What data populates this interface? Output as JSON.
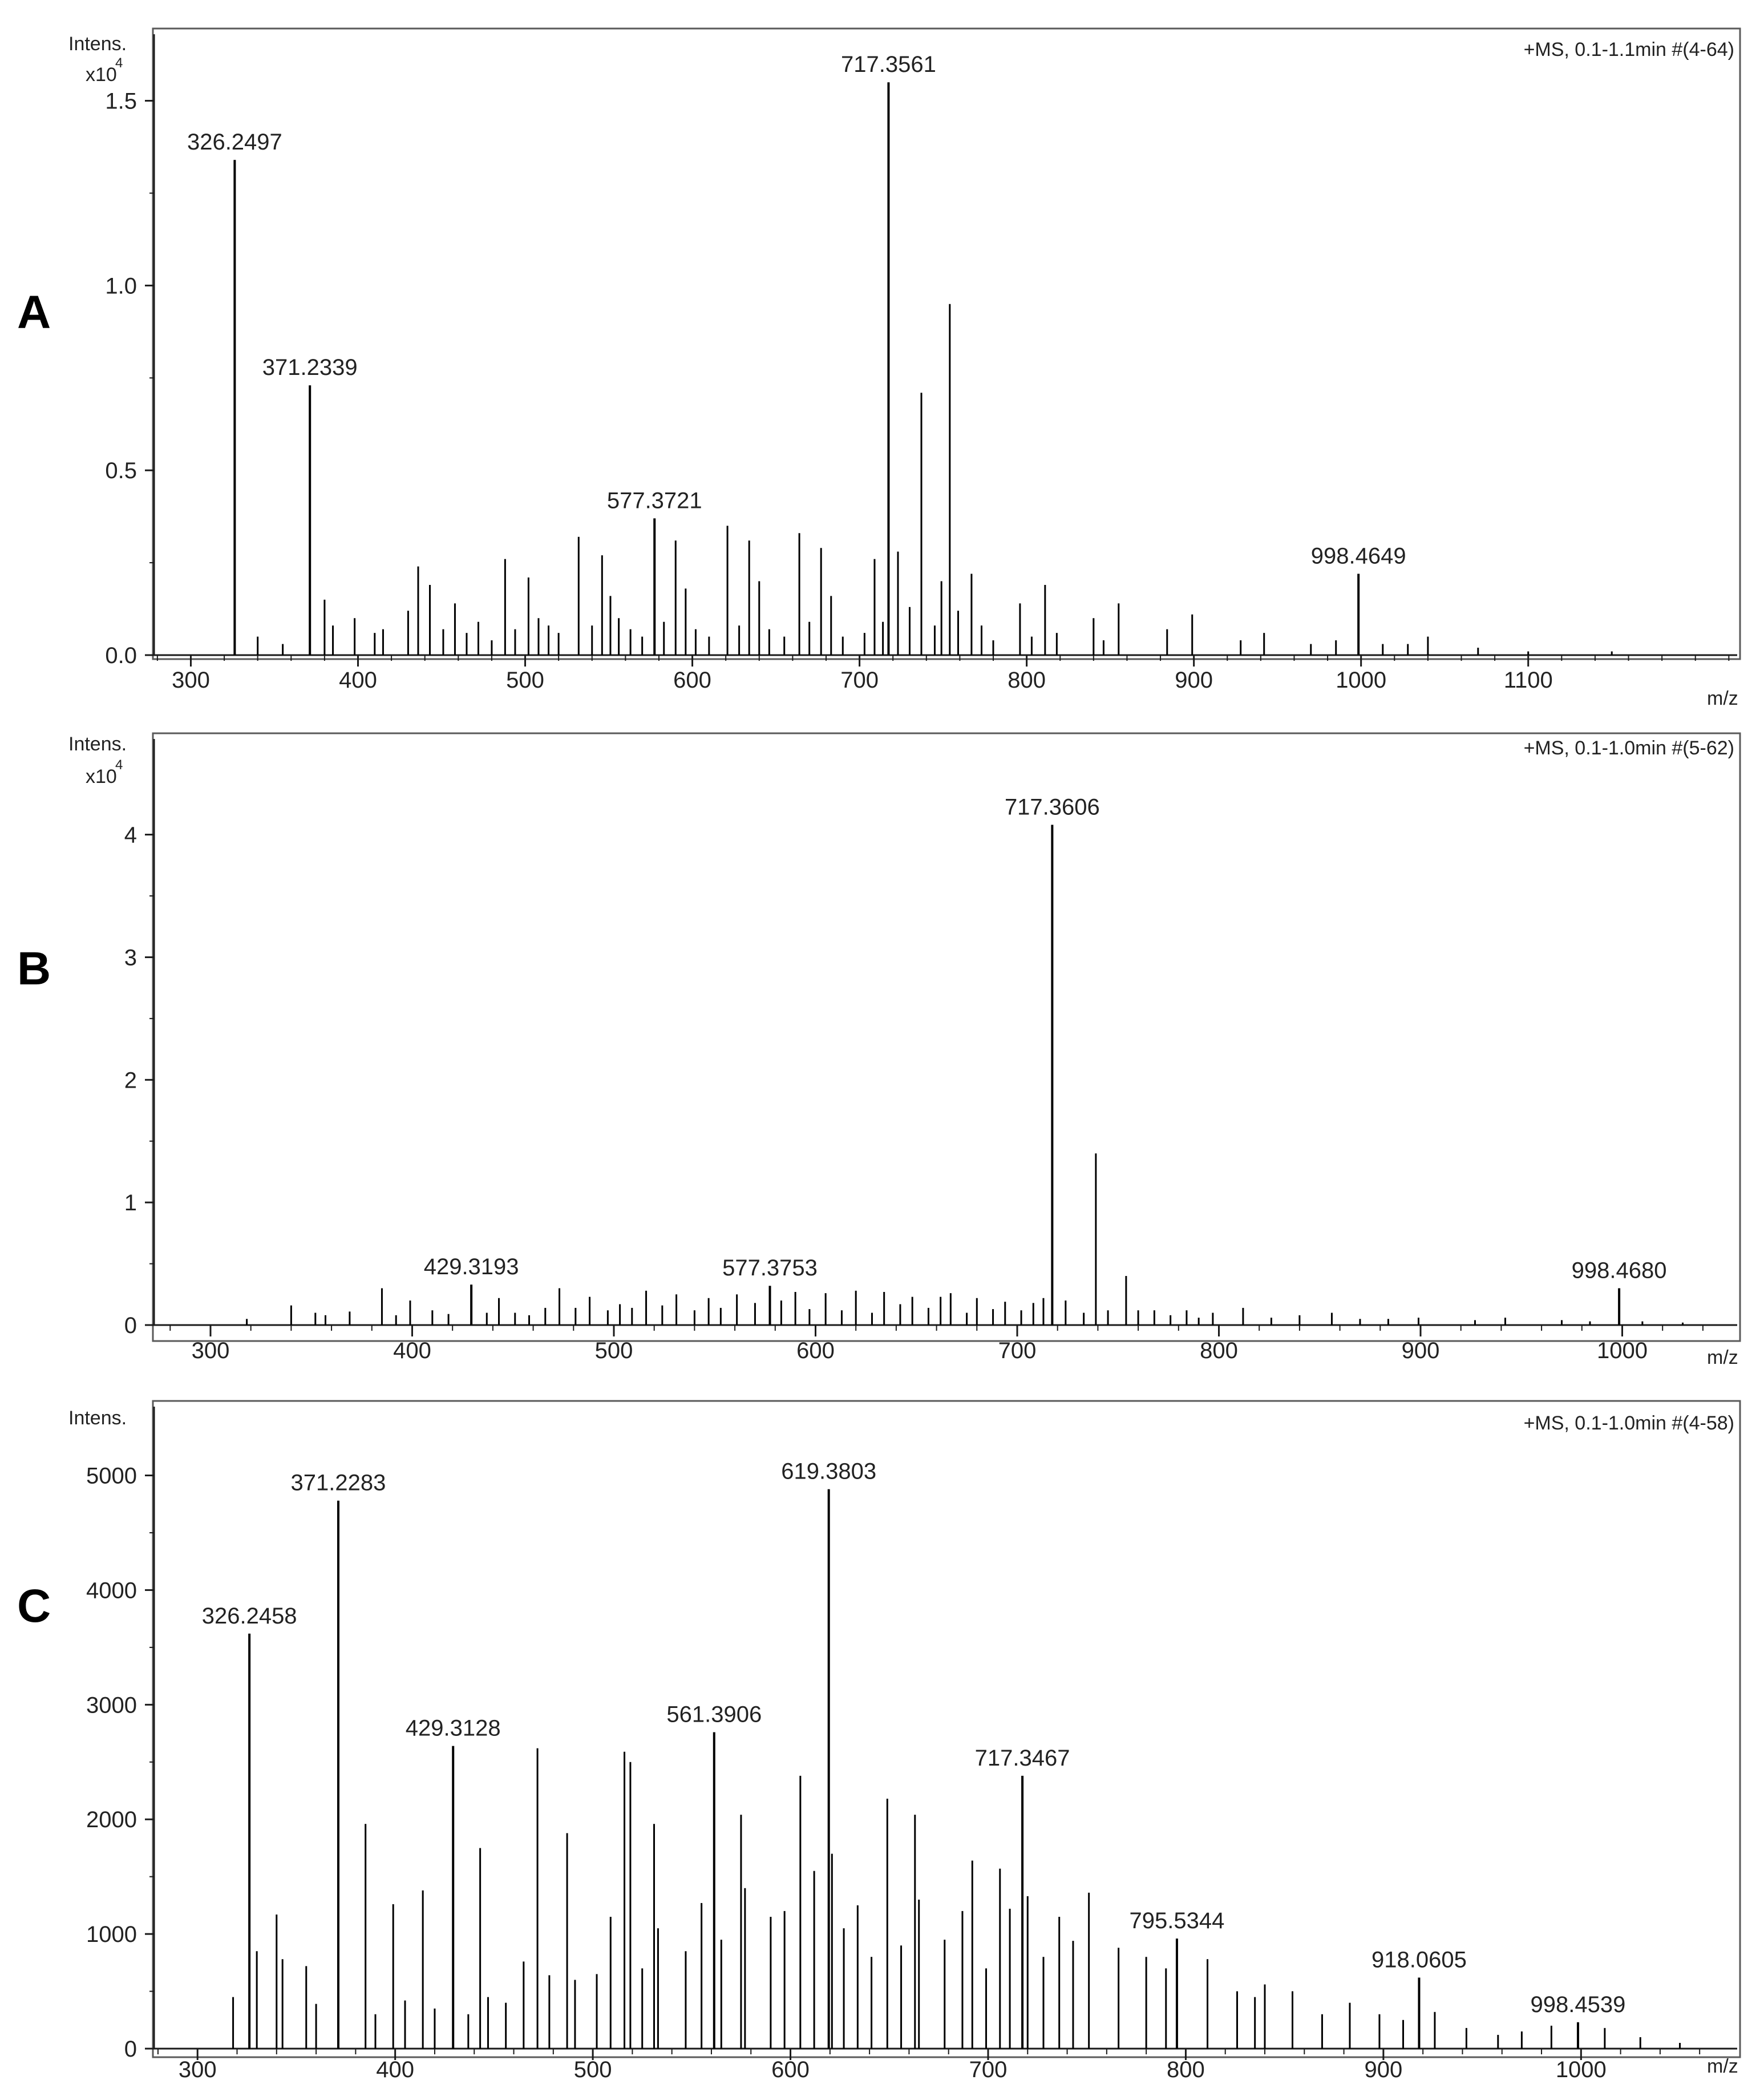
{
  "chart_data": [
    {
      "type": "bar",
      "panel_label": "A",
      "title": "+MS, 0.1-1.1min #(4-64)",
      "ylabel": "Intens.",
      "y_exponent_base": "x10",
      "y_exponent_power": "4",
      "xlabel": "m/z",
      "xlim": [
        278,
        1225
      ],
      "ylim": [
        0,
        1.68
      ],
      "x_ticks": [
        300,
        400,
        500,
        600,
        700,
        800,
        900,
        1000,
        1100
      ],
      "x_tick_labels": [
        "300",
        "400",
        "500",
        "600",
        "700",
        "800",
        "900",
        "1000",
        "1100"
      ],
      "y_ticks": [
        0,
        0.5,
        1.0,
        1.5
      ],
      "y_tick_labels": [
        "0.0",
        "0.5",
        "1.0",
        "1.5"
      ],
      "labeled_peaks": [
        {
          "mz": 326.2497,
          "intensity": 1.34,
          "label": "326.2497"
        },
        {
          "mz": 371.2339,
          "intensity": 0.73,
          "label": "371.2339"
        },
        {
          "mz": 577.3721,
          "intensity": 0.37,
          "label": "577.3721"
        },
        {
          "mz": 717.3561,
          "intensity": 1.55,
          "label": "717.3561"
        },
        {
          "mz": 998.4649,
          "intensity": 0.22,
          "label": "998.4649"
        }
      ],
      "other_peaks": [
        [
          340,
          0.05
        ],
        [
          355,
          0.03
        ],
        [
          380,
          0.15
        ],
        [
          385,
          0.08
        ],
        [
          398,
          0.1
        ],
        [
          410,
          0.06
        ],
        [
          415,
          0.07
        ],
        [
          430,
          0.12
        ],
        [
          436,
          0.24
        ],
        [
          443,
          0.19
        ],
        [
          451,
          0.07
        ],
        [
          458,
          0.14
        ],
        [
          465,
          0.06
        ],
        [
          472,
          0.09
        ],
        [
          480,
          0.04
        ],
        [
          488,
          0.26
        ],
        [
          494,
          0.07
        ],
        [
          502,
          0.21
        ],
        [
          508,
          0.1
        ],
        [
          514,
          0.08
        ],
        [
          520,
          0.06
        ],
        [
          532,
          0.32
        ],
        [
          540,
          0.08
        ],
        [
          546,
          0.27
        ],
        [
          551,
          0.16
        ],
        [
          556,
          0.1
        ],
        [
          563,
          0.07
        ],
        [
          570,
          0.05
        ],
        [
          583,
          0.09
        ],
        [
          590,
          0.31
        ],
        [
          596,
          0.18
        ],
        [
          602,
          0.07
        ],
        [
          610,
          0.05
        ],
        [
          621,
          0.35
        ],
        [
          628,
          0.08
        ],
        [
          634,
          0.31
        ],
        [
          640,
          0.2
        ],
        [
          646,
          0.07
        ],
        [
          655,
          0.05
        ],
        [
          664,
          0.33
        ],
        [
          670,
          0.09
        ],
        [
          677,
          0.29
        ],
        [
          683,
          0.16
        ],
        [
          690,
          0.05
        ],
        [
          703,
          0.06
        ],
        [
          709,
          0.26
        ],
        [
          714,
          0.09
        ],
        [
          723,
          0.28
        ],
        [
          730,
          0.13
        ],
        [
          737,
          0.71
        ],
        [
          745,
          0.08
        ],
        [
          749,
          0.2
        ],
        [
          754,
          0.95
        ],
        [
          759,
          0.12
        ],
        [
          767,
          0.22
        ],
        [
          773,
          0.08
        ],
        [
          780,
          0.04
        ],
        [
          796,
          0.14
        ],
        [
          803,
          0.05
        ],
        [
          811,
          0.19
        ],
        [
          818,
          0.06
        ],
        [
          840,
          0.1
        ],
        [
          846,
          0.04
        ],
        [
          855,
          0.14
        ],
        [
          884,
          0.07
        ],
        [
          899,
          0.11
        ],
        [
          928,
          0.04
        ],
        [
          942,
          0.06
        ],
        [
          970,
          0.03
        ],
        [
          985,
          0.04
        ],
        [
          1013,
          0.03
        ],
        [
          1028,
          0.03
        ],
        [
          1040,
          0.05
        ],
        [
          1070,
          0.02
        ],
        [
          1100,
          0.01
        ],
        [
          1150,
          0.01
        ]
      ]
    },
    {
      "type": "bar",
      "panel_label": "B",
      "title": "+MS, 0.1-1.0min #(5-62)",
      "ylabel": "Intens.",
      "y_exponent_base": "x10",
      "y_exponent_power": "4",
      "xlabel": "m/z",
      "xlim": [
        272,
        1057
      ],
      "ylim": [
        0,
        4.78
      ],
      "x_ticks": [
        300,
        400,
        500,
        600,
        700,
        800,
        900,
        1000
      ],
      "x_tick_labels": [
        "300",
        "400",
        "500",
        "600",
        "700",
        "800",
        "900",
        "1000"
      ],
      "y_ticks": [
        0,
        1,
        2,
        3,
        4
      ],
      "y_tick_labels": [
        "0",
        "1",
        "2",
        "3",
        "4"
      ],
      "labeled_peaks": [
        {
          "mz": 429.3193,
          "intensity": 0.33,
          "label": "429.3193"
        },
        {
          "mz": 577.3753,
          "intensity": 0.32,
          "label": "577.3753"
        },
        {
          "mz": 717.3606,
          "intensity": 4.08,
          "label": "717.3606"
        },
        {
          "mz": 998.468,
          "intensity": 0.3,
          "label": "998.4680"
        }
      ],
      "other_peaks": [
        [
          318,
          0.05
        ],
        [
          340,
          0.16
        ],
        [
          352,
          0.1
        ],
        [
          357,
          0.08
        ],
        [
          369,
          0.11
        ],
        [
          385,
          0.3
        ],
        [
          392,
          0.08
        ],
        [
          399,
          0.2
        ],
        [
          410,
          0.12
        ],
        [
          418,
          0.09
        ],
        [
          437,
          0.1
        ],
        [
          443,
          0.22
        ],
        [
          451,
          0.1
        ],
        [
          458,
          0.08
        ],
        [
          466,
          0.14
        ],
        [
          473,
          0.3
        ],
        [
          481,
          0.14
        ],
        [
          488,
          0.23
        ],
        [
          497,
          0.12
        ],
        [
          503,
          0.17
        ],
        [
          509,
          0.14
        ],
        [
          516,
          0.28
        ],
        [
          524,
          0.16
        ],
        [
          531,
          0.25
        ],
        [
          540,
          0.12
        ],
        [
          547,
          0.22
        ],
        [
          553,
          0.14
        ],
        [
          561,
          0.25
        ],
        [
          570,
          0.18
        ],
        [
          583,
          0.2
        ],
        [
          590,
          0.27
        ],
        [
          597,
          0.13
        ],
        [
          605,
          0.26
        ],
        [
          613,
          0.12
        ],
        [
          620,
          0.28
        ],
        [
          628,
          0.1
        ],
        [
          634,
          0.27
        ],
        [
          642,
          0.17
        ],
        [
          648,
          0.23
        ],
        [
          656,
          0.14
        ],
        [
          662,
          0.23
        ],
        [
          667,
          0.26
        ],
        [
          675,
          0.1
        ],
        [
          680,
          0.22
        ],
        [
          688,
          0.13
        ],
        [
          694,
          0.19
        ],
        [
          702,
          0.12
        ],
        [
          708,
          0.18
        ],
        [
          713,
          0.22
        ],
        [
          724,
          0.2
        ],
        [
          733,
          0.1
        ],
        [
          739,
          1.4
        ],
        [
          745,
          0.12
        ],
        [
          754,
          0.4
        ],
        [
          760,
          0.12
        ],
        [
          768,
          0.12
        ],
        [
          776,
          0.08
        ],
        [
          784,
          0.12
        ],
        [
          790,
          0.06
        ],
        [
          797,
          0.1
        ],
        [
          812,
          0.14
        ],
        [
          826,
          0.06
        ],
        [
          840,
          0.08
        ],
        [
          856,
          0.1
        ],
        [
          870,
          0.05
        ],
        [
          884,
          0.05
        ],
        [
          899,
          0.06
        ],
        [
          927,
          0.04
        ],
        [
          942,
          0.06
        ],
        [
          970,
          0.04
        ],
        [
          984,
          0.03
        ],
        [
          1010,
          0.03
        ],
        [
          1030,
          0.02
        ]
      ]
    },
    {
      "type": "bar",
      "panel_label": "C",
      "title": "+MS, 0.1-1.0min #(4-58)",
      "ylabel": "Intens.",
      "xlabel": "m/z",
      "xlim": [
        278,
        1079
      ],
      "ylim": [
        0,
        5600
      ],
      "x_ticks": [
        300,
        400,
        500,
        600,
        700,
        800,
        900,
        1000
      ],
      "x_tick_labels": [
        "300",
        "400",
        "500",
        "600",
        "700",
        "800",
        "900",
        "1000"
      ],
      "y_ticks": [
        0,
        1000,
        2000,
        3000,
        4000,
        5000
      ],
      "y_tick_labels": [
        "0",
        "1000",
        "2000",
        "3000",
        "4000",
        "5000"
      ],
      "labeled_peaks": [
        {
          "mz": 326.2458,
          "intensity": 3620,
          "label": "326.2458"
        },
        {
          "mz": 371.2283,
          "intensity": 4780,
          "label": "371.2283"
        },
        {
          "mz": 429.3128,
          "intensity": 2640,
          "label": "429.3128"
        },
        {
          "mz": 561.3906,
          "intensity": 2760,
          "label": "561.3906"
        },
        {
          "mz": 619.3803,
          "intensity": 4880,
          "label": "619.3803"
        },
        {
          "mz": 717.3467,
          "intensity": 2380,
          "label": "717.3467"
        },
        {
          "mz": 795.5344,
          "intensity": 960,
          "label": "795.5344"
        },
        {
          "mz": 918.0605,
          "intensity": 620,
          "label": "918.0605"
        },
        {
          "mz": 998.4539,
          "intensity": 230,
          "label": "998.4539"
        }
      ],
      "other_peaks": [
        [
          318,
          450
        ],
        [
          330,
          850
        ],
        [
          340,
          1170
        ],
        [
          343,
          780
        ],
        [
          355,
          720
        ],
        [
          360,
          390
        ],
        [
          385,
          1960
        ],
        [
          390,
          300
        ],
        [
          399,
          1260
        ],
        [
          405,
          420
        ],
        [
          414,
          1380
        ],
        [
          420,
          350
        ],
        [
          437,
          300
        ],
        [
          443,
          1750
        ],
        [
          447,
          450
        ],
        [
          456,
          400
        ],
        [
          465,
          760
        ],
        [
          472,
          2620
        ],
        [
          478,
          640
        ],
        [
          487,
          1880
        ],
        [
          491,
          600
        ],
        [
          502,
          650
        ],
        [
          509,
          1150
        ],
        [
          516,
          2590
        ],
        [
          519,
          2500
        ],
        [
          525,
          700
        ],
        [
          531,
          1960
        ],
        [
          533,
          1050
        ],
        [
          547,
          850
        ],
        [
          555,
          1270
        ],
        [
          565,
          950
        ],
        [
          575,
          2040
        ],
        [
          577,
          1400
        ],
        [
          590,
          1150
        ],
        [
          597,
          1200
        ],
        [
          605,
          2380
        ],
        [
          612,
          1550
        ],
        [
          621,
          1700
        ],
        [
          627,
          1050
        ],
        [
          634,
          1250
        ],
        [
          641,
          800
        ],
        [
          649,
          2180
        ],
        [
          656,
          900
        ],
        [
          663,
          2040
        ],
        [
          665,
          1300
        ],
        [
          678,
          950
        ],
        [
          687,
          1200
        ],
        [
          692,
          1640
        ],
        [
          699,
          700
        ],
        [
          706,
          1570
        ],
        [
          711,
          1220
        ],
        [
          720,
          1330
        ],
        [
          728,
          800
        ],
        [
          736,
          1150
        ],
        [
          743,
          940
        ],
        [
          751,
          1360
        ],
        [
          766,
          880
        ],
        [
          780,
          800
        ],
        [
          790,
          700
        ],
        [
          811,
          780
        ],
        [
          826,
          500
        ],
        [
          835,
          450
        ],
        [
          840,
          560
        ],
        [
          854,
          500
        ],
        [
          869,
          300
        ],
        [
          883,
          400
        ],
        [
          898,
          300
        ],
        [
          910,
          250
        ],
        [
          926,
          320
        ],
        [
          942,
          180
        ],
        [
          958,
          120
        ],
        [
          970,
          150
        ],
        [
          985,
          200
        ],
        [
          1012,
          180
        ],
        [
          1030,
          100
        ],
        [
          1050,
          50
        ]
      ]
    }
  ]
}
